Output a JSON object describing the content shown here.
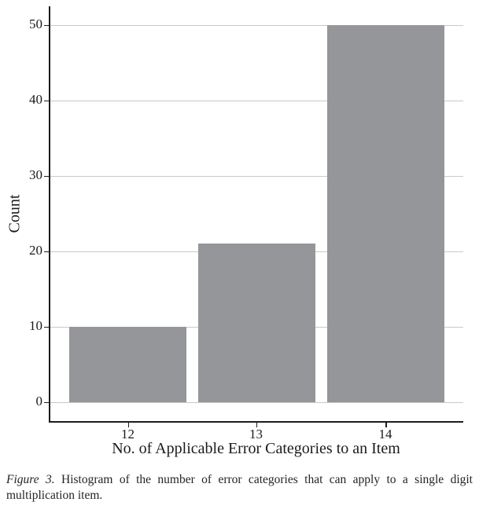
{
  "figure": {
    "caption_label": "Figure 3.",
    "caption_text": "  Histogram of the number of error categories that can apply to a single digit multiplication item."
  },
  "chart_data": {
    "type": "bar",
    "title": "",
    "categories": [
      "12",
      "13",
      "14"
    ],
    "values": [
      10,
      21,
      50
    ],
    "xlabel": "No. of Applicable Error Categories to an Item",
    "ylabel": "Count",
    "yticks": [
      0,
      10,
      20,
      30,
      40,
      50
    ],
    "ylim": [
      0,
      50
    ],
    "grid": "horizontal-only",
    "legend": "none",
    "bar_color": "#95969A",
    "gridline_color": "#C9C9C9",
    "axis_color": "#1C1C1C"
  }
}
